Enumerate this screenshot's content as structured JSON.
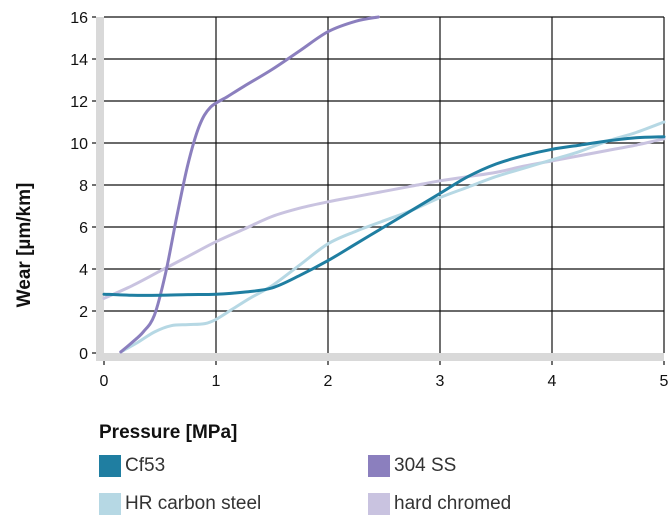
{
  "chart_data": {
    "type": "line",
    "xlabel": "Pressure [MPa]",
    "ylabel": "Wear [µm/km]",
    "xlim": [
      0,
      5
    ],
    "ylim": [
      0,
      16
    ],
    "x_ticks": [
      "0",
      "1",
      "2",
      "3",
      "4",
      "5"
    ],
    "y_ticks": [
      "0",
      "2",
      "4",
      "6",
      "8",
      "10",
      "12",
      "14",
      "16"
    ],
    "grid": true,
    "legend_position": "bottom",
    "series": [
      {
        "name": "Cf53",
        "color": "#1f7ea1",
        "x": [
          0,
          0.25,
          0.5,
          0.75,
          1.0,
          1.25,
          1.5,
          1.75,
          2.0,
          2.25,
          2.5,
          2.75,
          3.0,
          3.25,
          3.5,
          3.75,
          4.0,
          4.25,
          4.5,
          4.75,
          5.0
        ],
        "y": [
          2.8,
          2.75,
          2.75,
          2.78,
          2.8,
          2.9,
          3.1,
          3.7,
          4.4,
          5.2,
          6.0,
          6.8,
          7.6,
          8.4,
          9.0,
          9.4,
          9.7,
          9.9,
          10.1,
          10.25,
          10.3
        ]
      },
      {
        "name": "304 SS",
        "color": "#8b7fbe",
        "x": [
          0.15,
          0.25,
          0.35,
          0.45,
          0.55,
          0.65,
          0.75,
          0.85,
          0.95,
          1.1,
          1.25,
          1.5,
          1.75,
          2.0,
          2.25,
          2.45
        ],
        "y": [
          0.05,
          0.5,
          1.0,
          1.8,
          3.8,
          6.5,
          9.0,
          10.8,
          11.7,
          12.2,
          12.7,
          13.5,
          14.4,
          15.3,
          15.8,
          16.0
        ]
      },
      {
        "name": "HR carbon steel",
        "color": "#b6d8e4",
        "x": [
          0.15,
          0.3,
          0.45,
          0.6,
          0.75,
          0.9,
          1.0,
          1.15,
          1.3,
          1.5,
          1.75,
          2.0,
          2.25,
          2.5,
          2.75,
          3.0,
          3.25,
          3.5,
          3.75,
          4.0,
          4.25,
          4.5,
          4.75,
          5.0
        ],
        "y": [
          0.05,
          0.5,
          1.0,
          1.3,
          1.35,
          1.4,
          1.6,
          2.1,
          2.6,
          3.2,
          4.2,
          5.2,
          5.8,
          6.3,
          6.8,
          7.4,
          7.9,
          8.4,
          8.8,
          9.2,
          9.6,
          10.1,
          10.5,
          11.0
        ]
      },
      {
        "name": "hard chromed",
        "color": "#c9c3e0",
        "x": [
          0,
          0.25,
          0.5,
          0.75,
          1.0,
          1.25,
          1.5,
          1.75,
          2.0,
          2.25,
          2.5,
          2.75,
          3.0,
          3.25,
          3.5,
          3.75,
          4.0,
          4.25,
          4.5,
          4.75,
          5.0
        ],
        "y": [
          2.6,
          3.2,
          3.9,
          4.6,
          5.3,
          5.9,
          6.5,
          6.9,
          7.2,
          7.45,
          7.7,
          7.95,
          8.2,
          8.4,
          8.6,
          8.9,
          9.15,
          9.4,
          9.65,
          9.9,
          10.2
        ]
      }
    ]
  }
}
